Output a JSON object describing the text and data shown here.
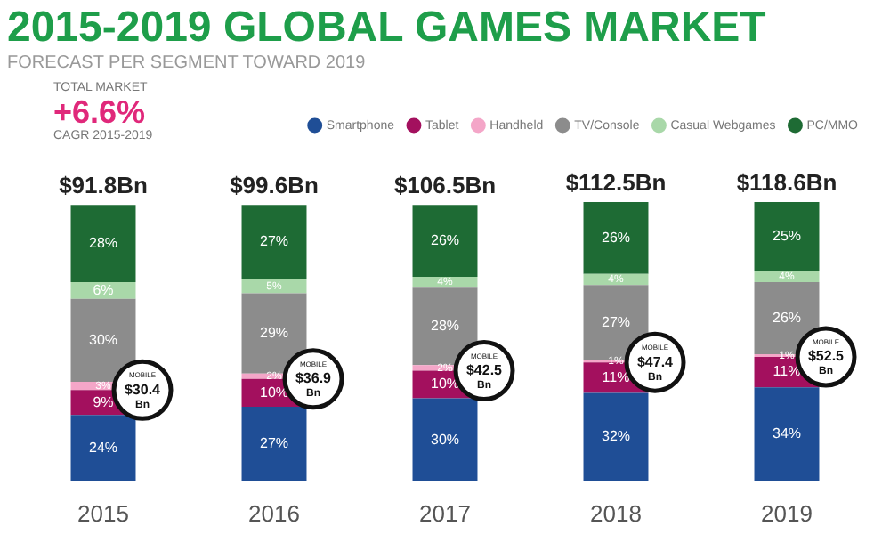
{
  "chart_data": {
    "type": "bar",
    "title": "2015-2019 GLOBAL GAMES MARKET",
    "subtitle": "FORECAST PER SEGMENT TOWARD 2019",
    "categories": [
      "2015",
      "2016",
      "2017",
      "2018",
      "2019"
    ],
    "stacked": true,
    "legend": "top right",
    "grid": false,
    "tick_labels": "x",
    "series": [
      {
        "name": "Smartphone",
        "color": "#1f4e96",
        "values": [
          24,
          27,
          30,
          32,
          34
        ],
        "value_labels": [
          "24%",
          "27%",
          "30%",
          "32%",
          "34%"
        ]
      },
      {
        "name": "Tablet",
        "color": "#a3105e",
        "values": [
          9,
          10,
          10,
          11,
          11
        ],
        "value_labels": [
          "9%",
          "10%",
          "10%",
          "11%",
          "11%"
        ]
      },
      {
        "name": "Handheld",
        "color": "#f4a6c8",
        "values": [
          3,
          2,
          2,
          1,
          1
        ],
        "value_labels": [
          "3%",
          "2%",
          "2%",
          "1%",
          "1%"
        ]
      },
      {
        "name": "TV/Console",
        "color": "#8c8c8c",
        "values": [
          30,
          29,
          28,
          27,
          26
        ],
        "value_labels": [
          "30%",
          "29%",
          "28%",
          "27%",
          "26%"
        ]
      },
      {
        "name": "Casual Webgames",
        "color": "#a9d8a9",
        "values": [
          6,
          5,
          4,
          4,
          4
        ],
        "value_labels": [
          "6%",
          "5%",
          "4%",
          "4%",
          "4%"
        ]
      },
      {
        "name": "PC/MMO",
        "color": "#1e6b34",
        "values": [
          28,
          27,
          26,
          26,
          25
        ],
        "value_labels": [
          "28%",
          "27%",
          "26%",
          "26%",
          "25%"
        ]
      }
    ],
    "annotations": [
      "TOTAL MARKET",
      "+6.6%",
      "CAGR 2015-2019",
      {
        "text": "$91.8Bn",
        "x": "2015",
        "y": 100
      },
      {
        "text": "$99.6Bn",
        "x": "2016",
        "y": 100
      },
      {
        "text": "$106.5Bn",
        "x": "2017",
        "y": 100
      },
      {
        "text": "$112.5Bn",
        "x": "2018",
        "y": 101
      },
      {
        "text": "$118.6Bn",
        "x": "2019",
        "y": 101
      },
      {
        "text": "MOBILE $30.4 Bn",
        "x": "2015",
        "y": 33
      },
      {
        "text": "MOBILE $36.9 Bn",
        "x": "2016",
        "y": 37
      },
      {
        "text": "MOBILE $42.5 Bn",
        "x": "2017",
        "y": 40
      },
      {
        "text": "MOBILE $47.4 Bn",
        "x": "2018",
        "y": 43
      },
      {
        "text": "MOBILE $52.5 Bn",
        "x": "2019",
        "y": 45
      }
    ]
  }
}
